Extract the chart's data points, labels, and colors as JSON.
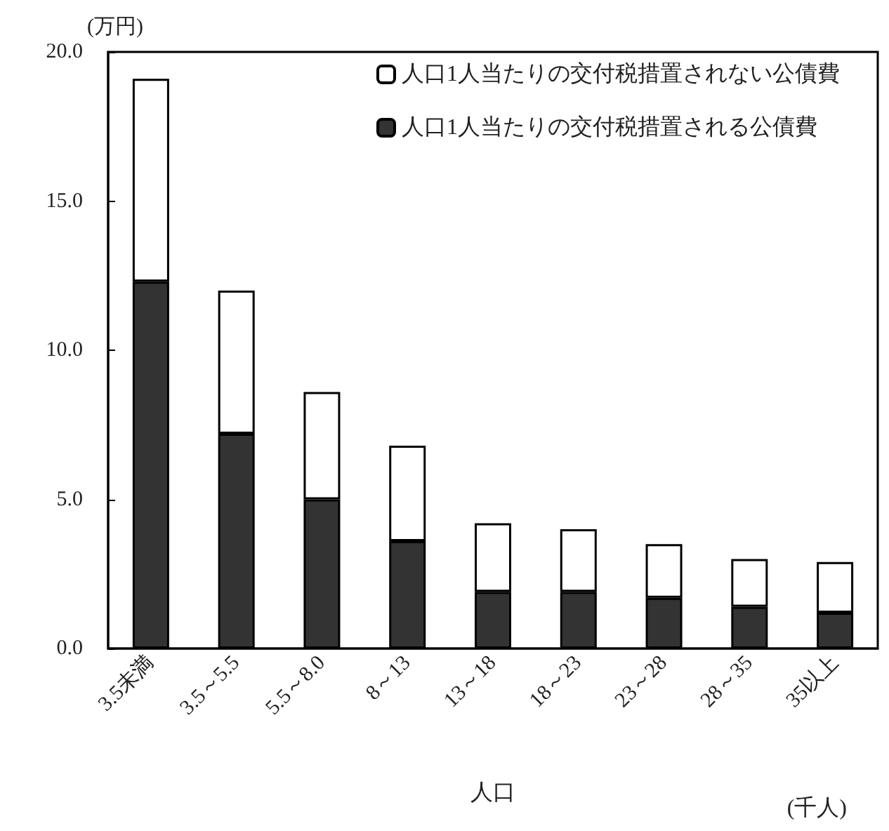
{
  "chart_data": {
    "type": "bar",
    "stacked": true,
    "ylabel": "(万円)",
    "xlabel": "人口",
    "annotations": [
      "(千人)"
    ],
    "categories": [
      "3.5未満",
      "3.5～5.5",
      "5.5～8.0",
      "8～13",
      "13～18",
      "18～23",
      "23～28",
      "28～35",
      "35以上"
    ],
    "series": [
      {
        "name": "人口1人当たりの交付税措置される公債費",
        "color": "#333333",
        "values": [
          12.3,
          7.2,
          5.0,
          3.6,
          1.9,
          1.9,
          1.7,
          1.4,
          1.2
        ]
      },
      {
        "name": "人口1人当たりの交付税措置されない公債費",
        "color": "#ffffff",
        "values": [
          6.8,
          4.8,
          3.6,
          3.2,
          2.3,
          2.1,
          1.8,
          1.6,
          1.7
        ]
      }
    ],
    "ylim": [
      0,
      20
    ],
    "yticks": [
      {
        "value": 0,
        "label": "0.0"
      },
      {
        "value": 5,
        "label": "5.0"
      },
      {
        "value": 10,
        "label": "10.0"
      },
      {
        "value": 15,
        "label": "15.0"
      },
      {
        "value": 20,
        "label": "20.0"
      }
    ],
    "grid": false,
    "legend": "top right"
  }
}
